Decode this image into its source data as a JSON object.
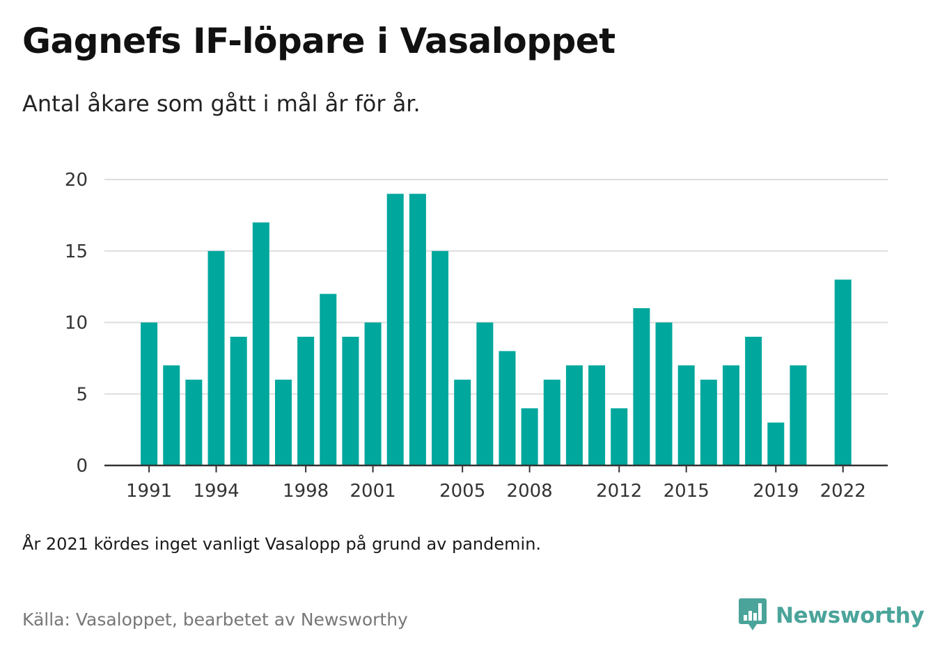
{
  "title": "Gagnefs IF-löpare i Vasaloppet",
  "subtitle": "Antal åkare som gått i mål år för år.",
  "note": "År 2021 kördes inget vanligt Vasalopp på grund av pandemin.",
  "source": "Källa: Vasaloppet, bearbetet av Newsworthy",
  "brand": {
    "name": "Newsworthy",
    "icon": "newsworthy-logo-icon"
  },
  "colors": {
    "bar": "#00a79d",
    "grid": "#dddddd",
    "axis": "#333333",
    "brand": "#4aa49a"
  },
  "chart_data": {
    "type": "bar",
    "title": "Gagnefs IF-löpare i Vasaloppet",
    "xlabel": "",
    "ylabel": "",
    "ylim": [
      0,
      20
    ],
    "yticks": [
      0,
      5,
      10,
      15,
      20
    ],
    "xticks": [
      1991,
      1994,
      1998,
      2001,
      2005,
      2008,
      2012,
      2015,
      2019,
      2022
    ],
    "grid": true,
    "categories": [
      1991,
      1992,
      1993,
      1994,
      1995,
      1996,
      1997,
      1998,
      1999,
      2000,
      2001,
      2002,
      2003,
      2004,
      2005,
      2006,
      2007,
      2008,
      2009,
      2010,
      2011,
      2012,
      2013,
      2014,
      2015,
      2016,
      2017,
      2018,
      2019,
      2020,
      2021,
      2022
    ],
    "values": [
      10,
      7,
      6,
      15,
      9,
      17,
      6,
      9,
      12,
      9,
      10,
      19,
      19,
      15,
      6,
      10,
      8,
      4,
      6,
      7,
      7,
      4,
      11,
      10,
      7,
      6,
      7,
      9,
      3,
      7,
      null,
      13
    ]
  }
}
